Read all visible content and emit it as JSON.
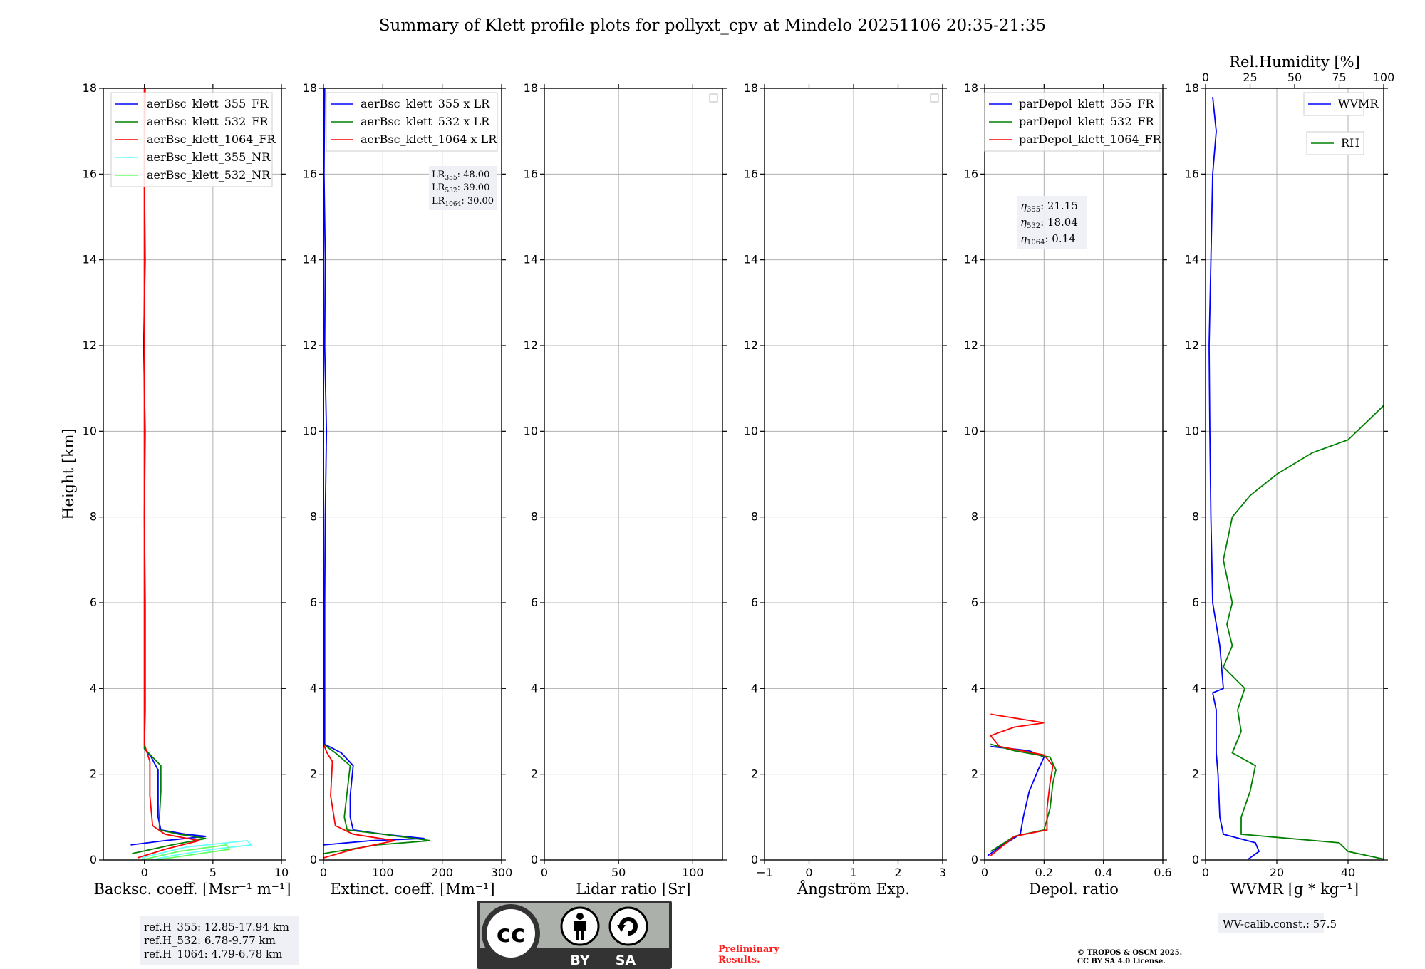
{
  "title": "Summary of Klett profile plots for pollyxt_cpv at Mindelo 20251106 20:35-21:35",
  "colors": {
    "c355": "#0000ff",
    "c532": "#008000",
    "c1064": "#ff0000",
    "nr355": "#66ffff",
    "nr532": "#66ff66",
    "wvmr": "#0000ff",
    "rh": "#008000",
    "prelim": "#ff2020"
  },
  "chart_data": [
    {
      "type": "line",
      "name": "backscatter",
      "xlabel": "Backsc. coeff. [Msr⁻¹ m⁻¹]",
      "ylabel": "Height [km]",
      "xlim": [
        -3,
        10
      ],
      "ylim": [
        0,
        18
      ],
      "xticks": [
        0,
        5,
        10
      ],
      "yticks": [
        0,
        2,
        4,
        6,
        8,
        10,
        12,
        14,
        16,
        18
      ],
      "grid": true,
      "legend": "top-left",
      "series": [
        {
          "name": "aerBsc_klett_355_FR",
          "color": "#0000ff",
          "points": [
            [
              -1.0,
              0.35
            ],
            [
              1.5,
              0.45
            ],
            [
              4.5,
              0.55
            ],
            [
              3.0,
              0.6
            ],
            [
              1.2,
              0.7
            ],
            [
              1.0,
              1.0
            ],
            [
              1.0,
              1.5
            ],
            [
              1.0,
              2.1
            ],
            [
              0.5,
              2.4
            ],
            [
              0.0,
              2.6
            ],
            [
              0.05,
              3.5
            ],
            [
              0.05,
              6
            ],
            [
              0.0,
              8
            ],
            [
              0.05,
              10
            ],
            [
              -0.05,
              12
            ],
            [
              0.05,
              14
            ],
            [
              0.0,
              16
            ],
            [
              0.05,
              18
            ]
          ]
        },
        {
          "name": "aerBsc_klett_532_FR",
          "color": "#008000",
          "points": [
            [
              -0.9,
              0.15
            ],
            [
              2.0,
              0.35
            ],
            [
              4.5,
              0.5
            ],
            [
              2.5,
              0.6
            ],
            [
              1.1,
              0.7
            ],
            [
              1.1,
              1.0
            ],
            [
              1.2,
              1.6
            ],
            [
              1.2,
              2.2
            ],
            [
              0.6,
              2.4
            ],
            [
              0.0,
              2.6
            ],
            [
              0.0,
              4
            ],
            [
              0.0,
              8
            ],
            [
              0.0,
              12
            ],
            [
              0.0,
              16
            ],
            [
              0.0,
              18
            ]
          ]
        },
        {
          "name": "aerBsc_klett_1064_FR",
          "color": "#ff0000",
          "points": [
            [
              -0.5,
              0.05
            ],
            [
              1.5,
              0.25
            ],
            [
              4.0,
              0.45
            ],
            [
              1.5,
              0.6
            ],
            [
              0.6,
              0.8
            ],
            [
              0.4,
              1.5
            ],
            [
              0.4,
              2.3
            ],
            [
              0.2,
              2.5
            ],
            [
              0.0,
              2.7
            ],
            [
              0.0,
              4
            ],
            [
              0.0,
              8
            ],
            [
              0.0,
              12
            ],
            [
              0.0,
              16
            ],
            [
              0.0,
              18
            ]
          ]
        },
        {
          "name": "aerBsc_klett_355_NR",
          "color": "#66ffff",
          "points": [
            [
              -0.2,
              0.05
            ],
            [
              3.0,
              0.3
            ],
            [
              7.5,
              0.45
            ],
            [
              7.8,
              0.35
            ],
            [
              5.0,
              0.25
            ],
            [
              2.0,
              0.1
            ],
            [
              0.5,
              0.0
            ]
          ]
        },
        {
          "name": "aerBsc_klett_532_NR",
          "color": "#66ff66",
          "points": [
            [
              -0.2,
              0.0
            ],
            [
              2.5,
              0.2
            ],
            [
              6.0,
              0.35
            ],
            [
              6.2,
              0.25
            ],
            [
              3.0,
              0.1
            ],
            [
              0.8,
              0.0
            ]
          ]
        }
      ],
      "info": [
        "ref.H_355: 12.85-17.94 km",
        "ref.H_532: 6.78-9.77 km",
        "ref.H_1064: 4.79-6.78 km"
      ]
    },
    {
      "type": "line",
      "name": "extinction",
      "xlabel": "Extinct. coeff. [Mm⁻¹]",
      "xlim": [
        0,
        300
      ],
      "ylim": [
        0,
        18
      ],
      "xticks": [
        0,
        100,
        200,
        300
      ],
      "yticks": [
        0,
        2,
        4,
        6,
        8,
        10,
        12,
        14,
        16,
        18
      ],
      "grid": true,
      "legend": "top-left",
      "series": [
        {
          "name": "aerBsc_klett_355 x LR",
          "color": "#0000ff",
          "points": [
            [
              0,
              0.35
            ],
            [
              80,
              0.45
            ],
            [
              170,
              0.5
            ],
            [
              100,
              0.6
            ],
            [
              50,
              0.7
            ],
            [
              45,
              1.0
            ],
            [
              45,
              1.5
            ],
            [
              50,
              2.2
            ],
            [
              30,
              2.5
            ],
            [
              2,
              2.7
            ],
            [
              2,
              4
            ],
            [
              2,
              6
            ],
            [
              3,
              8
            ],
            [
              5,
              10
            ],
            [
              2,
              12
            ],
            [
              3,
              14
            ],
            [
              1,
              16
            ],
            [
              2,
              18
            ]
          ]
        },
        {
          "name": "aerBsc_klett_532 x LR",
          "color": "#008000",
          "points": [
            [
              0,
              0.15
            ],
            [
              90,
              0.35
            ],
            [
              180,
              0.45
            ],
            [
              100,
              0.6
            ],
            [
              40,
              0.7
            ],
            [
              35,
              1.0
            ],
            [
              40,
              1.6
            ],
            [
              45,
              2.2
            ],
            [
              20,
              2.5
            ],
            [
              0,
              2.7
            ],
            [
              0,
              4
            ],
            [
              0,
              8
            ],
            [
              0,
              12
            ],
            [
              0,
              16
            ],
            [
              0,
              18
            ]
          ]
        },
        {
          "name": "aerBsc_klett_1064 x LR",
          "color": "#ff0000",
          "points": [
            [
              0,
              0.05
            ],
            [
              50,
              0.25
            ],
            [
              120,
              0.45
            ],
            [
              50,
              0.6
            ],
            [
              20,
              0.8
            ],
            [
              12,
              1.5
            ],
            [
              15,
              2.3
            ],
            [
              6,
              2.5
            ],
            [
              0,
              2.7
            ],
            [
              0,
              4
            ],
            [
              0,
              8
            ],
            [
              0,
              12
            ],
            [
              0,
              16
            ],
            [
              0,
              18
            ]
          ]
        }
      ],
      "lr_labels": [
        {
          "prefix": "LR",
          "sub": "355",
          "value": ": 48.00"
        },
        {
          "prefix": "LR",
          "sub": "532",
          "value": ": 39.00"
        },
        {
          "prefix": "LR",
          "sub": "1064",
          "value": ": 30.00"
        }
      ]
    },
    {
      "type": "line",
      "name": "lidar_ratio",
      "xlabel": "Lidar ratio [Sr]",
      "xlim": [
        0,
        120
      ],
      "ylim": [
        0,
        18
      ],
      "xticks": [
        0,
        50,
        100
      ],
      "yticks": [
        0,
        2,
        4,
        6,
        8,
        10,
        12,
        14,
        16,
        18
      ],
      "grid": true,
      "legend": "top-right",
      "series": []
    },
    {
      "type": "line",
      "name": "angstrom",
      "xlabel": "Ångström Exp.",
      "xlim": [
        -1,
        3
      ],
      "ylim": [
        0,
        18
      ],
      "xticks": [
        -1,
        0,
        1,
        2,
        3
      ],
      "yticks": [
        0,
        2,
        4,
        6,
        8,
        10,
        12,
        14,
        16,
        18
      ],
      "grid": true,
      "legend": "top-right",
      "series": []
    },
    {
      "type": "line",
      "name": "depol",
      "xlabel": "Depol. ratio",
      "xlim": [
        0,
        0.6
      ],
      "ylim": [
        0,
        18
      ],
      "xticks": [
        0.0,
        0.2,
        0.4,
        0.6
      ],
      "yticks": [
        0,
        2,
        4,
        6,
        8,
        10,
        12,
        14,
        16,
        18
      ],
      "grid": true,
      "legend": "top-left",
      "series": [
        {
          "name": "parDepol_klett_355_FR",
          "color": "#0000ff",
          "points": [
            [
              0.01,
              0.1
            ],
            [
              0.05,
              0.3
            ],
            [
              0.12,
              0.6
            ],
            [
              0.13,
              1.0
            ],
            [
              0.15,
              1.6
            ],
            [
              0.18,
              2.1
            ],
            [
              0.2,
              2.4
            ],
            [
              0.15,
              2.55
            ],
            [
              0.02,
              2.65
            ]
          ]
        },
        {
          "name": "parDepol_klett_532_FR",
          "color": "#008000",
          "points": [
            [
              0.02,
              0.2
            ],
            [
              0.1,
              0.55
            ],
            [
              0.2,
              0.7
            ],
            [
              0.22,
              1.2
            ],
            [
              0.23,
              1.8
            ],
            [
              0.24,
              2.1
            ],
            [
              0.22,
              2.4
            ],
            [
              0.1,
              2.55
            ],
            [
              0.02,
              2.7
            ]
          ]
        },
        {
          "name": "parDepol_klett_1064_FR",
          "color": "#ff0000",
          "points": [
            [
              0.02,
              0.1
            ],
            [
              0.1,
              0.55
            ],
            [
              0.21,
              0.7
            ],
            [
              0.21,
              1.2
            ],
            [
              0.22,
              1.8
            ],
            [
              0.23,
              2.2
            ],
            [
              0.2,
              2.45
            ],
            [
              0.05,
              2.65
            ],
            [
              0.02,
              2.9
            ],
            [
              0.1,
              3.1
            ],
            [
              0.2,
              3.2
            ],
            [
              0.02,
              3.4
            ]
          ]
        }
      ],
      "eta_labels": [
        {
          "prefix": "η",
          "sub": "355",
          "value": ": 21.15"
        },
        {
          "prefix": "η",
          "sub": "532",
          "value": ": 18.04"
        },
        {
          "prefix": "η",
          "sub": "1064",
          "value": ": 0.14"
        }
      ]
    },
    {
      "type": "line",
      "name": "wvmr",
      "xlabel": "WVMR [g * kg⁻¹]",
      "x2label": "Rel.Humidity [%]",
      "xlim": [
        0,
        50
      ],
      "x2lim": [
        0,
        100
      ],
      "ylim": [
        0,
        18
      ],
      "xticks": [
        0,
        20,
        40
      ],
      "x2ticks": [
        0,
        25,
        50,
        75,
        100
      ],
      "yticks": [
        0,
        2,
        4,
        6,
        8,
        10,
        12,
        14,
        16,
        18
      ],
      "grid": true,
      "series": [
        {
          "name": "WVMR",
          "color": "#0000ff",
          "axis": "bottom",
          "points": [
            [
              12,
              0.02
            ],
            [
              15,
              0.2
            ],
            [
              14,
              0.4
            ],
            [
              5,
              0.6
            ],
            [
              4,
              1.0
            ],
            [
              3.5,
              2.0
            ],
            [
              3,
              2.5
            ],
            [
              3,
              3.5
            ],
            [
              2,
              3.9
            ],
            [
              5,
              4.0
            ],
            [
              4,
              5
            ],
            [
              2,
              6
            ],
            [
              1.5,
              8
            ],
            [
              1.2,
              10
            ],
            [
              1,
              12
            ],
            [
              1.5,
              14
            ],
            [
              2,
              16
            ],
            [
              3,
              17
            ],
            [
              2,
              17.8
            ]
          ]
        },
        {
          "name": "RH",
          "color": "#008000",
          "axis": "top",
          "points": [
            [
              100,
              0.02
            ],
            [
              80,
              0.2
            ],
            [
              75,
              0.4
            ],
            [
              20,
              0.6
            ],
            [
              20,
              1.0
            ],
            [
              25,
              1.6
            ],
            [
              28,
              2.2
            ],
            [
              15,
              2.5
            ],
            [
              20,
              3.0
            ],
            [
              18,
              3.5
            ],
            [
              22,
              4.0
            ],
            [
              10,
              4.5
            ],
            [
              15,
              5.0
            ],
            [
              12,
              5.5
            ],
            [
              15,
              6.0
            ],
            [
              10,
              7.0
            ],
            [
              15,
              8.0
            ],
            [
              25,
              8.5
            ],
            [
              40,
              9.0
            ],
            [
              60,
              9.5
            ],
            [
              80,
              9.8
            ],
            [
              90,
              10.2
            ],
            [
              100,
              10.6
            ]
          ]
        }
      ],
      "calib": "WV-calib.const.: 57.5"
    }
  ],
  "footer": {
    "license_badge": [
      "cc",
      "BY",
      "SA"
    ],
    "preliminary": [
      "Preliminary",
      "Results."
    ],
    "copyright": [
      "© TROPOS & OSCM 2025.",
      "CC BY SA 4.0 License."
    ]
  }
}
